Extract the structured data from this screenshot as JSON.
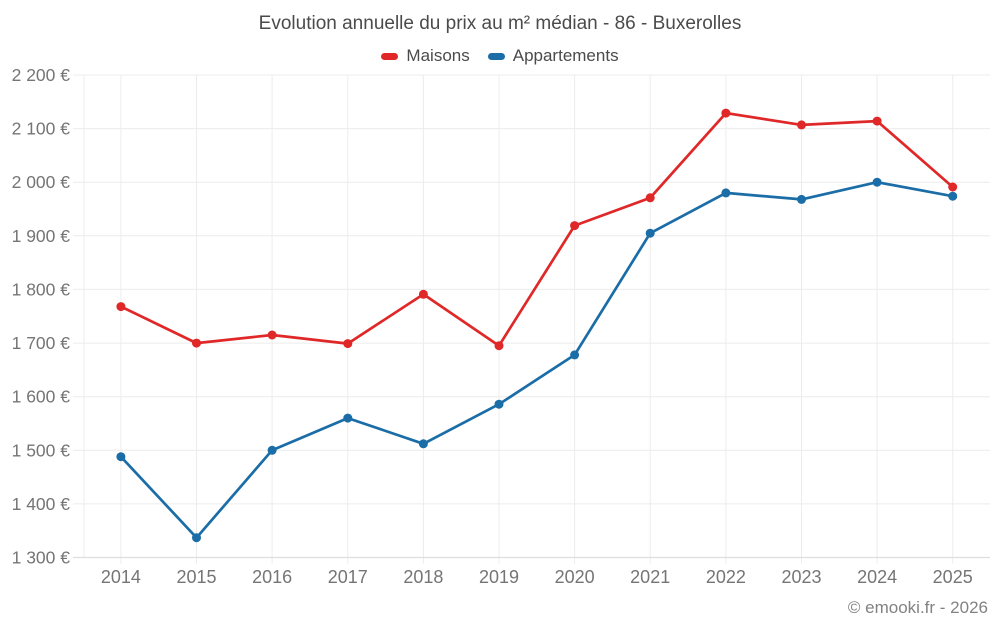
{
  "title": "Evolution annuelle du prix au m² médian - 86 - Buxerolles",
  "footer_credit": "© emooki.fr - 2026",
  "colors": {
    "maisons": "#df2827",
    "appartements": "#1a6da6",
    "grid": "#ececec",
    "axis_line": "#dedede",
    "tick_text": "#757575",
    "title_text": "#4b4b4b",
    "footer_text": "#828282"
  },
  "legend": {
    "items": [
      {
        "label": "Maisons",
        "color": "#df2827"
      },
      {
        "label": "Appartements",
        "color": "#1a6da6"
      }
    ]
  },
  "chart_data": {
    "type": "line",
    "title": "Evolution annuelle du prix au m² médian - 86 - Buxerolles",
    "categories": [
      "2014",
      "2015",
      "2016",
      "2017",
      "2018",
      "2019",
      "2020",
      "2021",
      "2022",
      "2023",
      "2024",
      "2025"
    ],
    "series": [
      {
        "name": "Maisons",
        "color": "#df2827",
        "values": [
          1768,
          1700,
          1715,
          1699,
          1791,
          1695,
          1919,
          1971,
          2129,
          2107,
          2114,
          1991
        ]
      },
      {
        "name": "Appartements",
        "color": "#1a6da6",
        "values": [
          1488,
          1337,
          1500,
          1560,
          1512,
          1586,
          1678,
          1905,
          1980,
          1968,
          2000,
          1974
        ]
      }
    ],
    "ylim": [
      1300,
      2200
    ],
    "ytick_step": 100,
    "yticks": [
      1300,
      1400,
      1500,
      1600,
      1700,
      1800,
      1900,
      2000,
      2100,
      2200
    ],
    "ytick_labels": [
      "1 300 €",
      "1 400 €",
      "1 500 €",
      "1 600 €",
      "1 700 €",
      "1 800 €",
      "1 900 €",
      "2 000 €",
      "2 100 €",
      "2 200 €"
    ],
    "unit": "€",
    "grid": true,
    "legend_position": "top"
  }
}
